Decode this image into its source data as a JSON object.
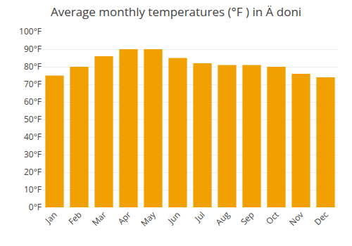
{
  "chart_data": {
    "type": "bar",
    "title": "Average monthly temperatures (°F ) in Ä doni",
    "categories": [
      "Jan",
      "Feb",
      "Mar",
      "Apr",
      "May",
      "Jun",
      "Jul",
      "Aug",
      "Sep",
      "Oct",
      "Nov",
      "Dec"
    ],
    "values": [
      75,
      80,
      86,
      90,
      90,
      85,
      82,
      81,
      81,
      80,
      76,
      74
    ],
    "color": "#F0A000",
    "ylim": [
      0,
      100
    ],
    "yticks": [
      {
        "value": 0,
        "label": "0°F"
      },
      {
        "value": 10,
        "label": "10°F"
      },
      {
        "value": 20,
        "label": "20°F"
      },
      {
        "value": 30,
        "label": "30°F"
      },
      {
        "value": 40,
        "label": "40°F"
      },
      {
        "value": 50,
        "label": "50°F"
      },
      {
        "value": 60,
        "label": "60°F"
      },
      {
        "value": 70,
        "label": "70°F"
      },
      {
        "value": 80,
        "label": "80°F"
      },
      {
        "value": 90,
        "label": "90°F"
      },
      {
        "value": 100,
        "label": "100°F"
      }
    ],
    "grid": true
  }
}
